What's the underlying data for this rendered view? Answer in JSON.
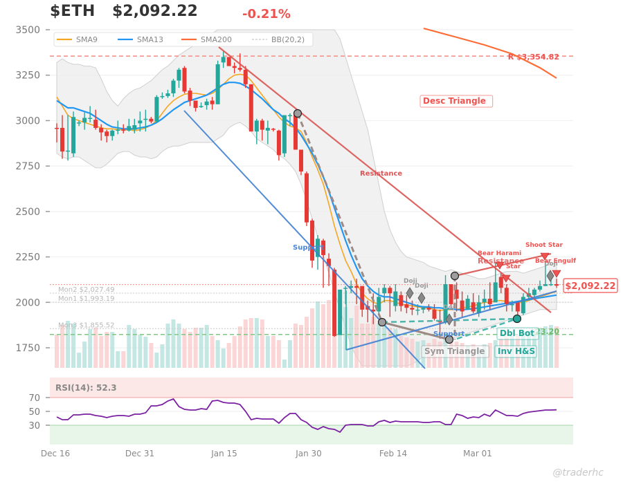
{
  "header": {
    "ticker": "$ETH",
    "price": "$2,092.22",
    "change": "-0.21%"
  },
  "legend": [
    {
      "label": "SMA9",
      "color": "#f5a623",
      "style": "solid"
    },
    {
      "label": "SMA13",
      "color": "#2196f3",
      "style": "solid"
    },
    {
      "label": "SMA200",
      "color": "#ff6b35",
      "style": "solid"
    },
    {
      "label": "BB(20,2)",
      "color": "#bbbbbb",
      "style": "dashed"
    }
  ],
  "price_axis": {
    "ticks": [
      "3500",
      "3250",
      "3000",
      "2750",
      "2500",
      "2250",
      "2000",
      "1750"
    ]
  },
  "date_axis": {
    "ticks": [
      "Dec 16",
      "Dec 31",
      "Jan 15",
      "Jan 30",
      "Feb 14",
      "Mar 01"
    ]
  },
  "levels": {
    "resistance": {
      "label": "R $3,354.82",
      "value": 3354.82,
      "color": "#f28b82"
    },
    "support_green": {
      "label": "23.20",
      "value": 1823.2,
      "color": "#81c784"
    },
    "mon2": {
      "label": "Mon2 $2,027.49",
      "value": 2027.49
    },
    "mon1": {
      "label": "Mon1 $1,993.19",
      "value": 1993.19
    },
    "mon3": {
      "label": "Mon3 $1,855.52",
      "value": 1855.52
    },
    "pivot_red": {
      "value": 2090
    }
  },
  "current_price_tag": "$2,092.22",
  "patterns": {
    "desc_triangle": "Desc Triangle",
    "sym_triangle": "Sym Triangle",
    "dbl_bot": "Dbl Bot",
    "inv_hs": "Inv H&S",
    "resistance_label_1": "Resistance",
    "resistance_label_2": "Resistance",
    "support_label_1": "Support",
    "support_label_2": "Support"
  },
  "candle_patterns": [
    {
      "label": "Doji",
      "type": "neutral"
    },
    {
      "label": "Doji",
      "type": "neutral"
    },
    {
      "label": "Doji",
      "type": "neutral"
    },
    {
      "label": "Bear Harami",
      "type": "bearish"
    },
    {
      "label": "Star",
      "type": "bearish"
    },
    {
      "label": "Shoot Star",
      "type": "bearish"
    },
    {
      "label": "Doji",
      "type": "neutral"
    },
    {
      "label": "Bear Engulf",
      "type": "bearish"
    }
  ],
  "rsi": {
    "label": "RSI(14): 52.3",
    "ticks": [
      "70",
      "50",
      "30"
    ],
    "value": 52.3
  },
  "watermark": "@traderhc",
  "chart_data": {
    "type": "candlestick",
    "title": "$ETH $2,092.22 -0.21%",
    "xlabel": "",
    "ylabel": "",
    "ylim": [
      1650,
      3500
    ],
    "x_tick_labels": [
      "Dec 16",
      "Dec 31",
      "Jan 15",
      "Jan 30",
      "Feb 14",
      "Mar 01"
    ],
    "y_ticks": [
      1750,
      2000,
      2250,
      2500,
      2750,
      3000,
      3250,
      3500
    ],
    "legend": [
      "SMA9",
      "SMA13",
      "SMA200",
      "BB(20,2)"
    ],
    "ohlc": [
      [
        2960,
        2985,
        2880,
        2955
      ],
      [
        2960,
        3030,
        2790,
        2830
      ],
      [
        2830,
        3030,
        2780,
        2835
      ],
      [
        2820,
        3050,
        2800,
        3020
      ],
      [
        2985,
        3000,
        2970,
        2990
      ],
      [
        2990,
        3045,
        2950,
        3015
      ],
      [
        3015,
        3080,
        2990,
        3015
      ],
      [
        3005,
        3060,
        2950,
        2960
      ],
      [
        2960,
        2980,
        2890,
        2935
      ],
      [
        2940,
        2950,
        2880,
        2915
      ],
      [
        2915,
        2950,
        2890,
        2945
      ],
      [
        2950,
        3000,
        2925,
        2950
      ],
      [
        2950,
        2980,
        2930,
        2945
      ],
      [
        2945,
        3010,
        2940,
        2970
      ],
      [
        2950,
        3010,
        2930,
        2975
      ],
      [
        2985,
        3050,
        2940,
        3000
      ],
      [
        3005,
        3060,
        2940,
        3010
      ],
      [
        3010,
        3020,
        2985,
        2995
      ],
      [
        2995,
        3140,
        2990,
        3130
      ],
      [
        3130,
        3155,
        3120,
        3135
      ],
      [
        3135,
        3170,
        3125,
        3150
      ],
      [
        3150,
        3230,
        3130,
        3220
      ],
      [
        3220,
        3290,
        3180,
        3280
      ],
      [
        3290,
        3300,
        3150,
        3160
      ],
      [
        3165,
        3180,
        3080,
        3110
      ],
      [
        3110,
        3110,
        3050,
        3070
      ],
      [
        3075,
        3100,
        3070,
        3080
      ],
      [
        3085,
        3120,
        3060,
        3105
      ],
      [
        3110,
        3130,
        3060,
        3090
      ],
      [
        3090,
        3330,
        3090,
        3310
      ],
      [
        3320,
        3380,
        3290,
        3350
      ],
      [
        3350,
        3350,
        3300,
        3300
      ],
      [
        3300,
        3320,
        3260,
        3290
      ],
      [
        3290,
        3370,
        3270,
        3280
      ],
      [
        3280,
        3300,
        3180,
        3200
      ],
      [
        3200,
        3200,
        2950,
        2940
      ],
      [
        2940,
        3010,
        2870,
        3000
      ],
      [
        3000,
        3010,
        2890,
        2950
      ],
      [
        2945,
        3000,
        2870,
        2960
      ],
      [
        2955,
        2960,
        2940,
        2950
      ],
      [
        2945,
        2950,
        2780,
        2810
      ],
      [
        2820,
        3010,
        2800,
        3030
      ],
      [
        3030,
        3040,
        2970,
        3030
      ],
      [
        3030,
        3030,
        2840,
        2840
      ],
      [
        2840,
        2840,
        2700,
        2720
      ],
      [
        2710,
        2720,
        2420,
        2440
      ],
      [
        2450,
        2460,
        2190,
        2230
      ],
      [
        2250,
        2370,
        2180,
        2350
      ],
      [
        2340,
        2350,
        2080,
        2260
      ],
      [
        2240,
        2270,
        2090,
        2200
      ],
      [
        2180,
        2190,
        1810,
        1815
      ],
      [
        1820,
        2060,
        1820,
        2070
      ],
      [
        2075,
        2090,
        1990,
        2080
      ],
      [
        2080,
        2120,
        2050,
        2090
      ],
      [
        2090,
        2130,
        1990,
        2080
      ],
      [
        2090,
        2080,
        1920,
        1960
      ],
      [
        1980,
        2010,
        1890,
        1960
      ],
      [
        1960,
        2050,
        1880,
        1950
      ],
      [
        1950,
        2080,
        1930,
        2030
      ],
      [
        2050,
        2100,
        2000,
        2080
      ],
      [
        2080,
        2090,
        1920,
        2050
      ],
      [
        1980,
        2100,
        1950,
        2060
      ],
      [
        2040,
        2060,
        1950,
        1980
      ],
      [
        1990,
        2040,
        1940,
        1970
      ],
      [
        1970,
        2010,
        1930,
        1960
      ],
      [
        1960,
        1990,
        1930,
        1960
      ],
      [
        1960,
        1980,
        1940,
        1970
      ],
      [
        1970,
        1990,
        1950,
        1960
      ],
      [
        1960,
        1990,
        1900,
        1910
      ],
      [
        1900,
        1960,
        1800,
        1890
      ],
      [
        1890,
        2150,
        1880,
        2100
      ],
      [
        2100,
        2090,
        1960,
        1990
      ],
      [
        2070,
        2110,
        1950,
        2020
      ],
      [
        2010,
        2060,
        1920,
        1950
      ],
      [
        1960,
        2040,
        1960,
        2020
      ],
      [
        2000,
        2050,
        1940,
        1950
      ],
      [
        1940,
        2040,
        1920,
        2000
      ],
      [
        2000,
        2070,
        1960,
        2020
      ],
      [
        2020,
        2110,
        1960,
        1990
      ],
      [
        2000,
        2220,
        2000,
        2110
      ],
      [
        2140,
        2160,
        2050,
        2080
      ],
      [
        2080,
        2100,
        1950,
        1990
      ],
      [
        1990,
        2010,
        1950,
        1990
      ],
      [
        2000,
        1990,
        1930,
        1950
      ],
      [
        1940,
        2050,
        1930,
        2030
      ],
      [
        2030,
        2080,
        2010,
        2050
      ],
      [
        2040,
        2080,
        2020,
        2070
      ],
      [
        2070,
        2120,
        2060,
        2090
      ],
      [
        2090,
        2220,
        2090,
        2100
      ],
      [
        2100,
        2130,
        2090,
        2100
      ],
      [
        2100,
        2130,
        2080,
        2092
      ]
    ],
    "series": [
      {
        "name": "RSI(14)",
        "last": 52.3
      }
    ]
  }
}
